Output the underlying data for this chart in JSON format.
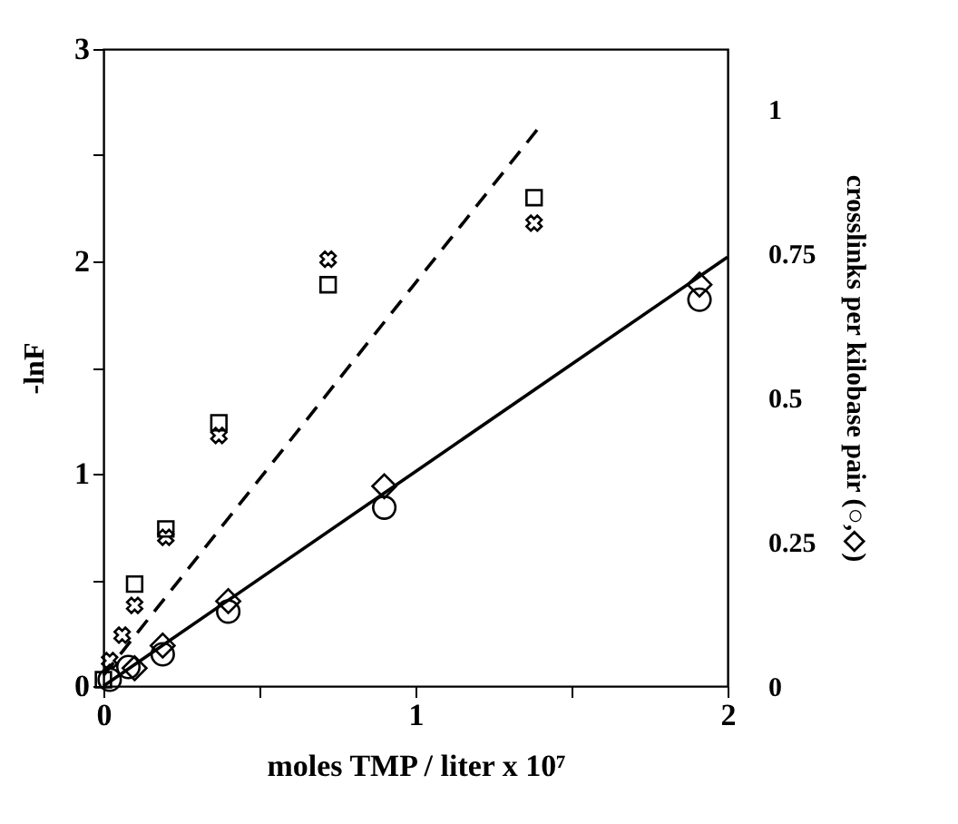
{
  "chart_data": {
    "type": "scatter",
    "xlabel": "moles TMP / liter  x  10⁷",
    "ylabel": "-lnF",
    "y2label": "crosslinks per kilobase pair (○,◇)",
    "xlim": [
      0,
      2
    ],
    "xticks": [
      0,
      {
        "value": 0.5,
        "label": null
      },
      1,
      {
        "value": 1.5,
        "label": null
      },
      2
    ],
    "ylim": [
      0,
      3
    ],
    "yticks": [
      0,
      {
        "value": 0.5,
        "label": null
      },
      1,
      {
        "value": 1.5,
        "label": null
      },
      2,
      {
        "value": 2.5,
        "label": null
      },
      3
    ],
    "y2lim": [
      0,
      1.103
    ],
    "y2ticks": [
      0,
      0.25,
      0.5,
      0.75,
      1
    ],
    "series": [
      {
        "marker": "square",
        "color": "#000000",
        "x": [
          0.0,
          0.1,
          0.2,
          0.37,
          0.72,
          1.38
        ],
        "values": [
          0.03,
          0.48,
          0.74,
          1.24,
          1.89,
          2.3
        ]
      },
      {
        "marker": "cross",
        "color": "#000000",
        "x": [
          0.02,
          0.06,
          0.1,
          0.2,
          0.37,
          0.72,
          1.38
        ],
        "values": [
          0.12,
          0.24,
          0.38,
          0.7,
          1.18,
          2.01,
          2.18
        ]
      },
      {
        "type": "line",
        "line_style": "dashed",
        "color": "#000000",
        "x": [
          0.0,
          1.39
        ],
        "values": [
          0.05,
          2.62
        ]
      },
      {
        "type": "line",
        "line_style": "solid",
        "color": "#000000",
        "x": [
          0.0,
          2.0
        ],
        "values": [
          0.0,
          2.02
        ]
      },
      {
        "marker": "circle",
        "color": "#000000",
        "axis": "y2",
        "x": [
          0.02,
          0.08,
          0.19,
          0.4,
          0.9,
          1.91
        ],
        "values": [
          0.011,
          0.033,
          0.055,
          0.129,
          0.309,
          0.669
        ]
      },
      {
        "marker": "diamond",
        "color": "#000000",
        "axis": "y2",
        "x": [
          0.1,
          0.19,
          0.4,
          0.9,
          1.91
        ],
        "values": [
          0.031,
          0.07,
          0.147,
          0.346,
          0.695
        ]
      }
    ]
  }
}
